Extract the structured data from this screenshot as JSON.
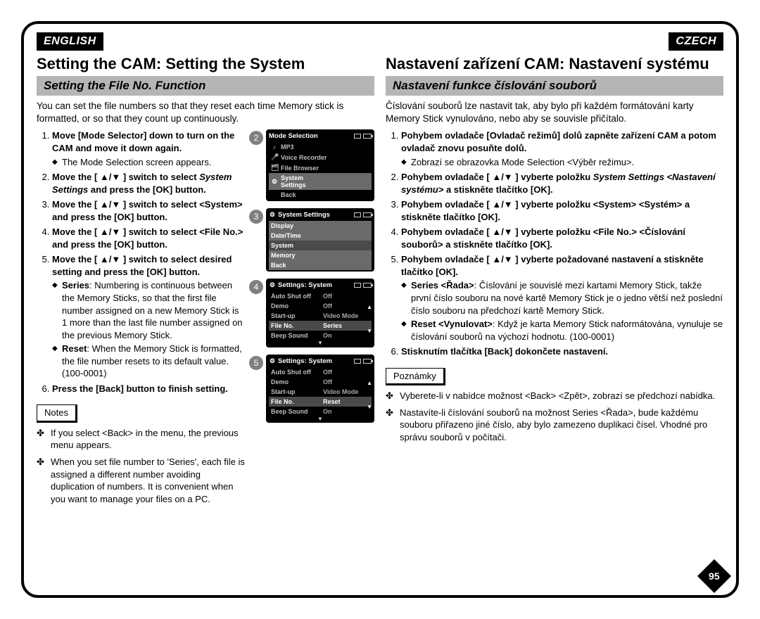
{
  "page_number": "95",
  "left": {
    "lang_badge": "ENGLISH",
    "title": "Setting the CAM: Setting the System",
    "section": "Setting the File No. Function",
    "intro": "You can set the file numbers so that they reset each time Memory stick is formatted, or so that they count up continuously.",
    "steps": [
      {
        "b": "Move [Mode Selector] down to turn on the CAM and move it down again.",
        "sub": [
          {
            "t": "The Mode Selection screen appears."
          }
        ]
      },
      {
        "b": "Move the [ ▲/▼ ] switch to select ",
        "em": "System Settings",
        "b2": " and press the [OK] button."
      },
      {
        "b": "Move the [ ▲/▼ ] switch to select <System> and press the [OK] button."
      },
      {
        "b": "Move the [ ▲/▼ ] switch to select <File No.> and press the [OK] button."
      },
      {
        "b": "Move the [ ▲/▼ ] switch to select desired setting and press the [OK] button.",
        "sub": [
          {
            "bt": "Series",
            "t": ": Numbering is continuous between the Memory Sticks, so that the first file number assigned on a new Memory Stick is 1 more than the last file number assigned on the previous Memory Stick."
          },
          {
            "bt": "Reset",
            "t": ": When the Memory Stick is formatted, the file number resets to its default value. (100-0001)"
          }
        ]
      },
      {
        "b": "Press the [Back] button to finish setting."
      }
    ],
    "notes_label": "Notes",
    "notes": [
      "If you select <Back> in the menu, the previous menu appears.",
      "When you set file number to 'Series', each file is assigned a different number avoiding duplication of numbers.\nIt is convenient when you want to manage your files on a PC."
    ]
  },
  "right": {
    "lang_badge": "CZECH",
    "title": "Nastavení zařízení CAM: Nastavení systému",
    "section": "Nastavení funkce číslování souborů",
    "intro": "Číslování souborů lze nastavit tak, aby bylo při každém formátování karty Memory Stick vynulováno, nebo aby se souvisle přičítalo.",
    "steps": [
      {
        "b": "Pohybem ovladače [Ovladač režimů] dolů zapněte zařízení CAM a potom ovladač znovu posuňte dolů.",
        "sub": [
          {
            "t": "Zobrazí se obrazovka Mode Selection <Výběr režimu>."
          }
        ]
      },
      {
        "b": "Pohybem ovladače [ ▲/▼ ] vyberte položku ",
        "em": "System Settings <Nastavení systému>",
        "b2": " a stiskněte tlačítko [OK]."
      },
      {
        "b": "Pohybem ovladače [ ▲/▼ ] vyberte položku <System> <Systém> a stiskněte tlačítko [OK]."
      },
      {
        "b": "Pohybem ovladače [ ▲/▼ ] vyberte položku <File No.> <Číslování souborů> a stiskněte tlačítko [OK]."
      },
      {
        "b": "Pohybem ovladače [ ▲/▼ ] vyberte požadované nastavení a stiskněte tlačítko [OK].",
        "sub": [
          {
            "bt": "Series <Řada>",
            "t": ": Číslování je souvislé mezi kartami Memory Stick, takže první číslo souboru na nové kartě Memory Stick je o jedno větší než poslední číslo souboru na předchozí kartě Memory Stick."
          },
          {
            "bt": "Reset <Vynulovat>",
            "t": ": Když je karta Memory Stick naformátována, vynuluje se číslování souborů na výchozí hodnotu. (100-0001)"
          }
        ]
      },
      {
        "b": "Stisknutím tlačítka [Back] dokončete nastavení."
      }
    ],
    "notes_label": "Poznámky",
    "notes": [
      "Vyberete-li v nabídce možnost <Back> <Zpět>, zobrazí se předchozí nabídka.",
      "Nastavíte-li číslování souborů na možnost Series <Řada>, bude každému souboru přiřazeno jiné číslo, aby bylo zamezeno duplikaci čísel. Vhodné pro správu souborů v počítači."
    ]
  },
  "screens": [
    {
      "num": "2",
      "title": "Mode Selection",
      "rows": [
        {
          "ico": "♪",
          "lab": "MP3"
        },
        {
          "ico": "🎤",
          "lab": "Voice Recorder"
        },
        {
          "ico": "🗂",
          "lab": "File Browser"
        },
        {
          "ico": "⚙",
          "lab": "System Settings",
          "sel": true
        },
        {
          "ico": "",
          "lab": "Back"
        }
      ]
    },
    {
      "num": "3",
      "title": "System Settings",
      "tico": "⚙",
      "rows": [
        {
          "lab": "Display",
          "sel": true
        },
        {
          "lab": "Date/Time",
          "sel": true
        },
        {
          "lab": "System",
          "sel": true,
          "dark": true
        },
        {
          "lab": "Memory",
          "sel": true
        },
        {
          "lab": "Back",
          "sel": true
        }
      ]
    },
    {
      "num": "4",
      "title": "Settings: System",
      "tico": "⚙",
      "rows": [
        {
          "lab": "Auto Shut off",
          "val": "Off"
        },
        {
          "lab": "Demo",
          "val": "Off"
        },
        {
          "lab": "Start-up",
          "val": "Video Mode"
        },
        {
          "lab": "File No.",
          "val": "Series",
          "sel": true,
          "dark": true
        },
        {
          "lab": "Beep Sound",
          "val": "On"
        }
      ],
      "arrows": true,
      "bottom": true
    },
    {
      "num": "5",
      "title": "Settings: System",
      "tico": "⚙",
      "rows": [
        {
          "lab": "Auto Shut off",
          "val": "Off"
        },
        {
          "lab": "Demo",
          "val": "Off"
        },
        {
          "lab": "Start-up",
          "val": "Video Mode"
        },
        {
          "lab": "File No.",
          "val": "Reset",
          "sel": true,
          "dark": true
        },
        {
          "lab": "Beep Sound",
          "val": "On"
        }
      ],
      "arrows": true,
      "bottom": true
    }
  ]
}
